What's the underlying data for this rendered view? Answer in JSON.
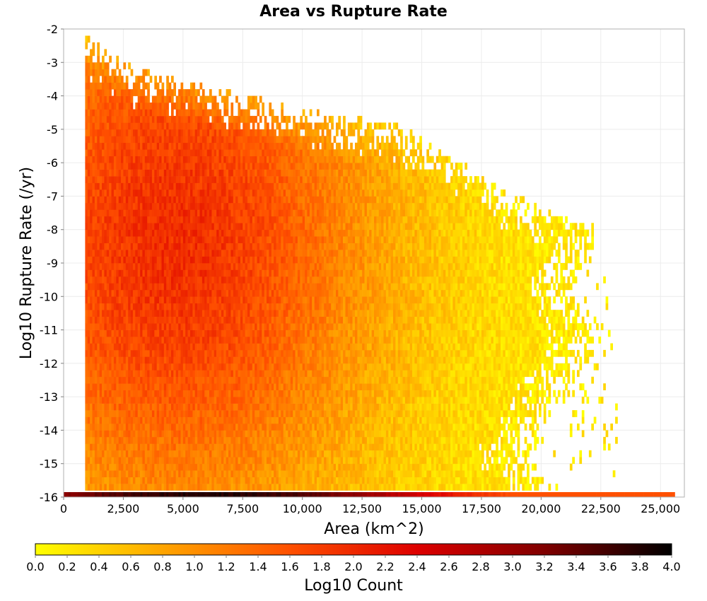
{
  "chart_data": {
    "type": "heatmap",
    "title": "Area vs Rupture Rate",
    "xlabel": "Area (km^2)",
    "ylabel": "Log10 Rupture Rate (/yr)",
    "xlim": [
      0,
      26000
    ],
    "ylim": [
      -16,
      -2
    ],
    "x_ticks": [
      0,
      2500,
      5000,
      7500,
      10000,
      12500,
      15000,
      17500,
      20000,
      22500,
      25000
    ],
    "x_tick_labels": [
      "0",
      "2,500",
      "5,000",
      "7,500",
      "10,000",
      "12,500",
      "15,000",
      "17,500",
      "20,000",
      "22,500",
      "25,000"
    ],
    "y_ticks": [
      -2,
      -3,
      -4,
      -5,
      -6,
      -7,
      -8,
      -9,
      -10,
      -11,
      -12,
      -13,
      -14,
      -15,
      -16
    ],
    "y_tick_labels": [
      "-2",
      "-3",
      "-4",
      "-5",
      "-6",
      "-7",
      "-8",
      "-9",
      "-10",
      "-11",
      "-12",
      "-13",
      "-14",
      "-15",
      "-16"
    ],
    "grid": true,
    "colorbar": {
      "label": "Log10 Count",
      "range": [
        0,
        4
      ],
      "ticks": [
        0.0,
        0.2,
        0.4,
        0.6,
        0.8,
        1.0,
        1.2,
        1.4,
        1.6,
        1.8,
        2.0,
        2.2,
        2.4,
        2.6,
        2.8,
        3.0,
        3.2,
        3.4,
        3.6,
        3.8,
        4.0
      ],
      "tick_labels": [
        "0.0",
        "0.2",
        "0.4",
        "0.6",
        "0.8",
        "1.0",
        "1.2",
        "1.4",
        "1.6",
        "1.8",
        "2.0",
        "2.2",
        "2.4",
        "2.6",
        "2.8",
        "3.0",
        "3.2",
        "3.4",
        "3.6",
        "3.8",
        "4.0"
      ],
      "colors": [
        "#ffff00",
        "#ffa500",
        "#ff5000",
        "#dd0000",
        "#800000",
        "#000000"
      ],
      "placement": "bottom"
    },
    "density_summary": {
      "x_bin_width": 100,
      "y_bin_height": 0.2,
      "x_min_populated": 900,
      "peak_region": {
        "x": [
          1000,
          8000
        ],
        "y": [
          -12,
          -5
        ],
        "log10_count": 1.8
      },
      "upper_envelope": [
        [
          1000,
          -2.4
        ],
        [
          3000,
          -3.3
        ],
        [
          7000,
          -4.0
        ],
        [
          10000,
          -4.5
        ],
        [
          14000,
          -5.0
        ],
        [
          16000,
          -5.8
        ],
        [
          18000,
          -6.8
        ],
        [
          21000,
          -7.8
        ],
        [
          22500,
          -8.0
        ],
        [
          23000,
          -11.5
        ]
      ],
      "right_edge_by_rate": [
        [
          -5,
          14000
        ],
        [
          -6,
          17000
        ],
        [
          -7,
          20000
        ],
        [
          -8,
          22200
        ],
        [
          -9,
          22100
        ],
        [
          -10,
          21000
        ],
        [
          -11,
          22600
        ],
        [
          -12,
          22000
        ],
        [
          -13,
          21000
        ],
        [
          -14,
          20000
        ],
        [
          -15,
          19500
        ],
        [
          -16,
          20500
        ]
      ],
      "bottom_row": {
        "y": -16,
        "x_range": [
          0,
          25600
        ],
        "log10_count_peak": 3.8,
        "peak_x": [
          3000,
          9000
        ]
      }
    }
  }
}
